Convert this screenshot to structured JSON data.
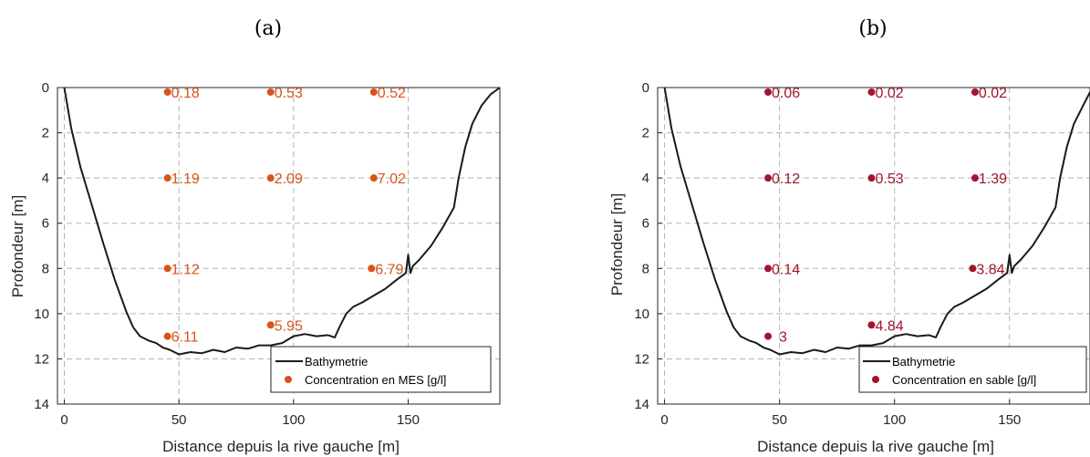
{
  "chart_data": [
    {
      "type": "scatter",
      "panel_label": "(a)",
      "xlabel": "Distance depuis la rive gauche [m]",
      "ylabel": "Profondeur [m]",
      "xlim": [
        -3,
        190
      ],
      "ylim": [
        14,
        0
      ],
      "y_reversed": true,
      "xticks": [
        0,
        50,
        100,
        150
      ],
      "yticks": [
        0,
        2,
        4,
        6,
        8,
        10,
        12,
        14
      ],
      "grid": true,
      "legend_position": "bottom-right",
      "series": [
        {
          "name": "Bathymetrie",
          "kind": "line",
          "color": "#1a1a1a",
          "x": [
            0,
            3,
            7,
            12,
            17,
            22,
            27,
            30,
            33,
            37,
            40,
            43,
            46,
            50,
            55,
            60,
            65,
            70,
            75,
            80,
            85,
            90,
            95,
            100,
            105,
            110,
            115,
            118,
            120,
            123,
            126,
            130,
            135,
            140,
            145,
            149,
            150,
            151,
            152,
            155,
            160,
            165,
            170,
            172,
            175,
            178,
            182,
            186,
            190
          ],
          "y": [
            0,
            1.8,
            3.5,
            5.2,
            6.9,
            8.5,
            9.9,
            10.6,
            11.0,
            11.2,
            11.3,
            11.5,
            11.6,
            11.8,
            11.7,
            11.75,
            11.6,
            11.7,
            11.5,
            11.55,
            11.4,
            11.4,
            11.3,
            11.0,
            10.9,
            11.0,
            10.95,
            11.05,
            10.6,
            10.0,
            9.7,
            9.5,
            9.2,
            8.9,
            8.5,
            8.2,
            7.4,
            8.2,
            7.9,
            7.6,
            7.0,
            6.2,
            5.3,
            4.0,
            2.6,
            1.6,
            0.8,
            0.3,
            0
          ]
        },
        {
          "name": "Concentration en MES [g/l]",
          "kind": "points",
          "color": "#d95319",
          "points": [
            {
              "x": 45,
              "y": 0.2,
              "label": "0.18"
            },
            {
              "x": 90,
              "y": 0.2,
              "label": "0.53"
            },
            {
              "x": 135,
              "y": 0.2,
              "label": "0.52"
            },
            {
              "x": 45,
              "y": 4,
              "label": "1.19"
            },
            {
              "x": 90,
              "y": 4,
              "label": "2.09"
            },
            {
              "x": 135,
              "y": 4,
              "label": "7.02"
            },
            {
              "x": 45,
              "y": 8,
              "label": "1.12"
            },
            {
              "x": 134,
              "y": 8,
              "label": "6.79"
            },
            {
              "x": 45,
              "y": 11,
              "label": "6.11"
            },
            {
              "x": 90,
              "y": 10.5,
              "label": "5.95"
            }
          ]
        }
      ]
    },
    {
      "type": "scatter",
      "panel_label": "(b)",
      "xlabel": "Distance depuis la rive gauche [m]",
      "ylabel": "Profondeur [m]",
      "xlim": [
        -3,
        185
      ],
      "ylim": [
        14,
        0
      ],
      "y_reversed": true,
      "xticks": [
        0,
        50,
        100,
        150
      ],
      "yticks": [
        0,
        2,
        4,
        6,
        8,
        10,
        12,
        14
      ],
      "grid": true,
      "legend_position": "bottom-right",
      "series": [
        {
          "name": "Bathymetrie",
          "kind": "line",
          "color": "#1a1a1a",
          "x": [
            0,
            3,
            7,
            12,
            17,
            22,
            27,
            30,
            33,
            37,
            40,
            43,
            46,
            50,
            55,
            60,
            65,
            70,
            75,
            80,
            85,
            90,
            95,
            100,
            105,
            110,
            115,
            118,
            120,
            123,
            126,
            130,
            135,
            140,
            145,
            149,
            150,
            151,
            152,
            155,
            160,
            165,
            170,
            172,
            175,
            178,
            182,
            185
          ],
          "y": [
            0,
            1.8,
            3.5,
            5.2,
            6.9,
            8.5,
            9.9,
            10.6,
            11.0,
            11.2,
            11.3,
            11.5,
            11.6,
            11.8,
            11.7,
            11.75,
            11.6,
            11.7,
            11.5,
            11.55,
            11.4,
            11.4,
            11.3,
            11.0,
            10.9,
            11.0,
            10.95,
            11.05,
            10.6,
            10.0,
            9.7,
            9.5,
            9.2,
            8.9,
            8.5,
            8.2,
            7.4,
            8.2,
            7.9,
            7.6,
            7.0,
            6.2,
            5.3,
            4.0,
            2.6,
            1.6,
            0.8,
            0.2
          ]
        },
        {
          "name": "Concentration en sable [g/l]",
          "kind": "points",
          "color": "#a2142f",
          "points": [
            {
              "x": 45,
              "y": 0.2,
              "label": "0.06"
            },
            {
              "x": 90,
              "y": 0.2,
              "label": "0.02"
            },
            {
              "x": 135,
              "y": 0.2,
              "label": "0.02"
            },
            {
              "x": 45,
              "y": 4,
              "label": "0.12"
            },
            {
              "x": 90,
              "y": 4,
              "label": "0.53"
            },
            {
              "x": 135,
              "y": 4,
              "label": "1.39"
            },
            {
              "x": 45,
              "y": 8,
              "label": "0.14"
            },
            {
              "x": 134,
              "y": 8,
              "label": "3.84"
            },
            {
              "x": 45,
              "y": 11,
              "label": "3"
            },
            {
              "x": 90,
              "y": 10.5,
              "label": "4.84"
            }
          ]
        }
      ]
    }
  ]
}
